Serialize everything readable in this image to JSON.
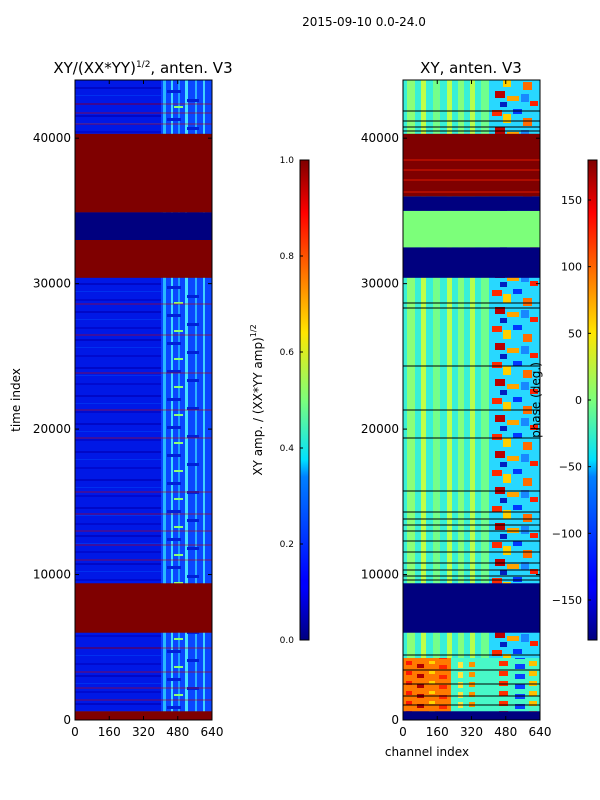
{
  "suptitle": "2015-09-10 0.0-24.0",
  "chart_data": [
    {
      "type": "heatmap",
      "title_base": "XY/(XX*YY)",
      "title_exp": "1/2",
      "title_suffix": ", anten. V3",
      "xlabel": "",
      "ylabel": "time index",
      "xlim": [
        0,
        640
      ],
      "ylim": [
        0,
        44000
      ],
      "xticks": [
        0,
        160,
        320,
        480,
        640
      ],
      "yticks": [
        0,
        10000,
        20000,
        30000,
        40000
      ],
      "colormap": "jet",
      "bands": [
        {
          "y": [
            0,
            600
          ],
          "value": 1.0
        },
        {
          "y": [
            6000,
            9400
          ],
          "value": 1.0
        },
        {
          "y": [
            30400,
            33000
          ],
          "value": 1.0
        },
        {
          "y": [
            33000,
            34900
          ],
          "value": 0.0
        },
        {
          "y": [
            34900,
            40300
          ],
          "value": 1.0
        }
      ],
      "colorbar": {
        "label_base": "XY amp. / (XX*YY amp)",
        "label_exp": "1/2",
        "range": [
          0.0,
          1.0
        ],
        "ticks": [
          "0.0",
          "0.2",
          "0.4",
          "0.6",
          "0.8",
          "1.0"
        ]
      }
    },
    {
      "type": "heatmap",
      "title": "XY, anten. V3",
      "xlabel": "channel index",
      "ylabel": "",
      "xlim": [
        0,
        640
      ],
      "ylim": [
        0,
        44000
      ],
      "xticks": [
        0,
        160,
        320,
        480,
        640
      ],
      "yticks": [
        0,
        10000,
        20000,
        30000,
        40000
      ],
      "colormap": "jet",
      "bands": [
        {
          "y": [
            0,
            600
          ],
          "value": -180
        },
        {
          "y": [
            6000,
            9400
          ],
          "value": -180
        },
        {
          "y": [
            30400,
            32500
          ],
          "value": -180
        },
        {
          "y": [
            32500,
            33000
          ],
          "value": 0
        },
        {
          "y": [
            33000,
            35000
          ],
          "value": 0
        },
        {
          "y": [
            35000,
            36000
          ],
          "value": -180
        },
        {
          "y": [
            36000,
            40300
          ],
          "value": 180
        }
      ],
      "colorbar": {
        "label": "phase (deg.)",
        "range": [
          -180,
          180
        ],
        "ticks": [
          "150",
          "100",
          "50",
          "0",
          "−50",
          "−100",
          "−150"
        ],
        "tick_values": [
          150,
          100,
          50,
          0,
          -50,
          -100,
          -150
        ]
      }
    }
  ]
}
